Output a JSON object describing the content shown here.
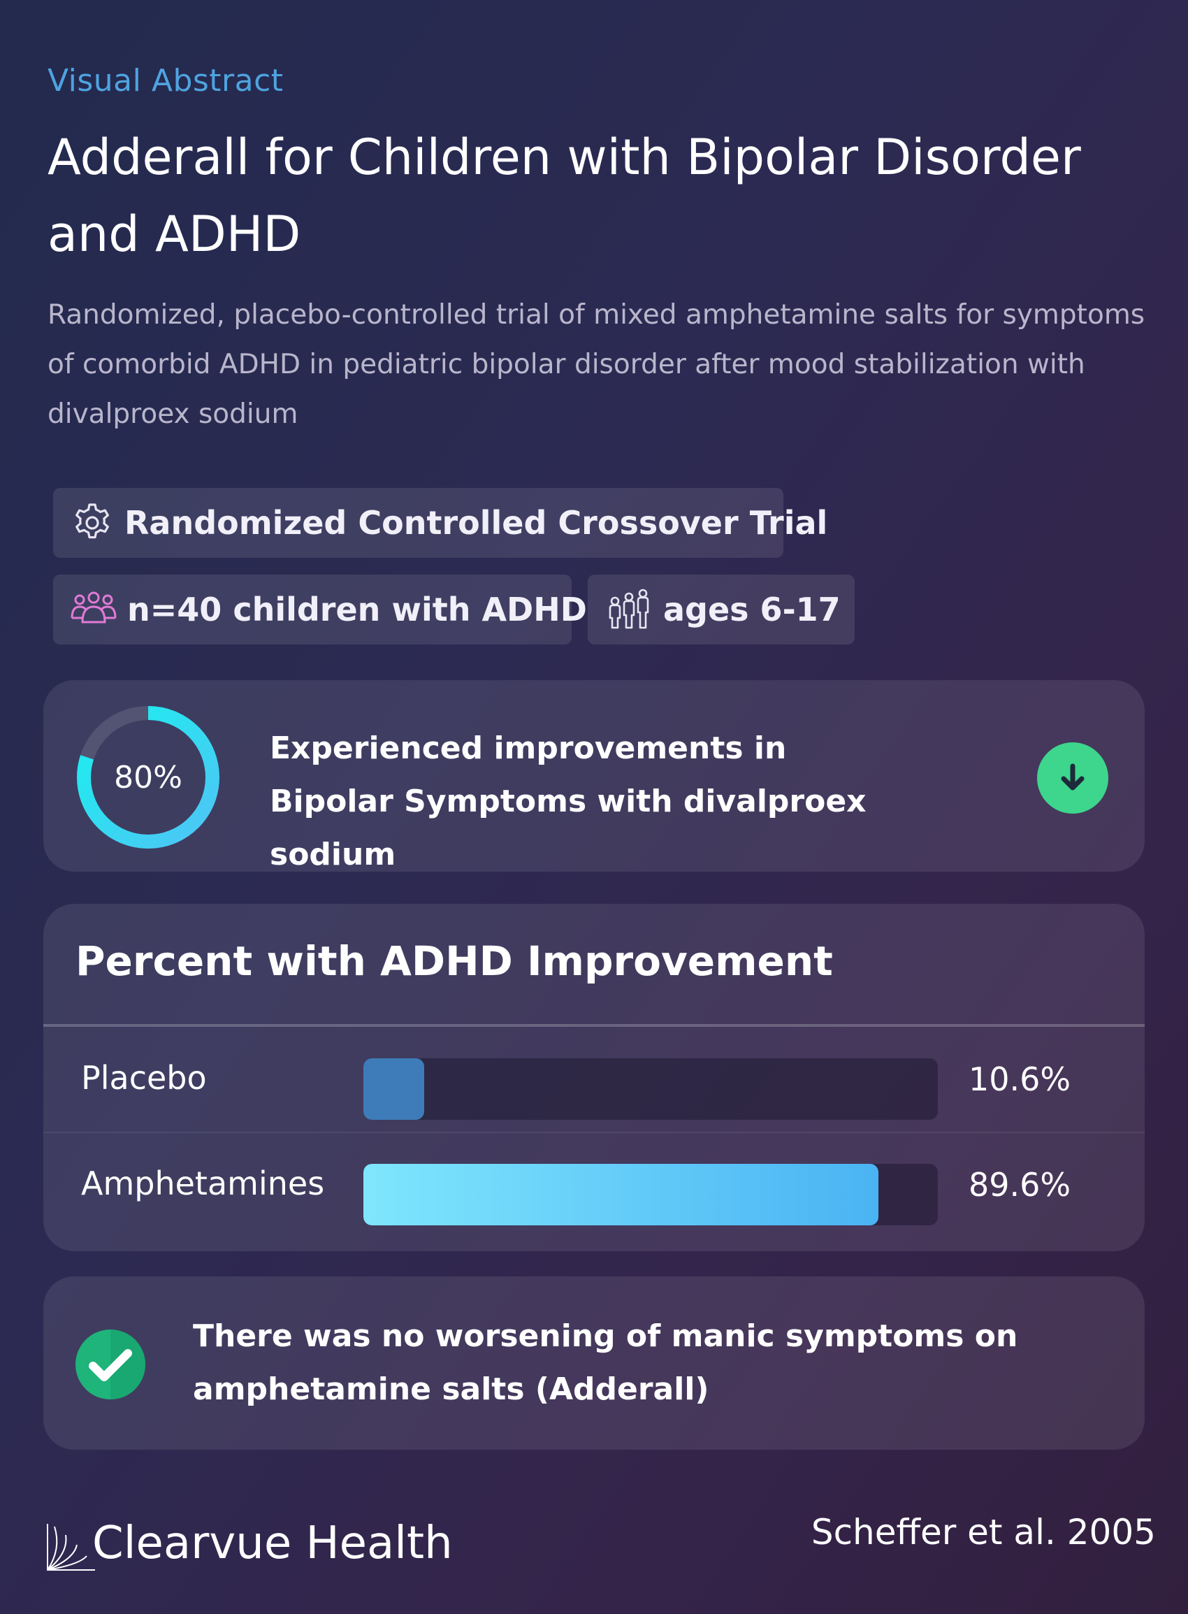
{
  "header": {
    "eyebrow": "Visual Abstract",
    "title": "Adderall for Children with Bipolar Disorder and ADHD",
    "subtitle": "Randomized, placebo-controlled trial of mixed amphetamine salts for symptoms of comorbid ADHD in pediatric bipolar disorder after mood stabilization with divalproex sodium"
  },
  "tags": {
    "design": {
      "label": "Randomized Controlled Crossover Trial",
      "icon": "gear-icon"
    },
    "sample": {
      "label": "n=40 children with ADHD",
      "icon": "people-group-icon"
    },
    "ages": {
      "label": "ages 6-17",
      "icon": "family-icon"
    }
  },
  "stat_card": {
    "percent_label": "80%",
    "percent_value": 80,
    "text": "Experienced improvements in Bipolar Symptoms with divalproex sodium",
    "icon": "arrow-down-icon",
    "ring_color": "#26e6f2",
    "button_color": "#3dd68c"
  },
  "chart_card": {
    "title": "Percent with ADHD Improvement"
  },
  "chart_data": {
    "type": "bar",
    "title": "Percent with ADHD Improvement",
    "categories": [
      "Placebo",
      "Amphetamines"
    ],
    "values": [
      10.6,
      89.6
    ],
    "value_labels": [
      "10.6%",
      "89.6%"
    ],
    "ylim": [
      0,
      100
    ],
    "orientation": "horizontal",
    "colors": [
      "#3d7cb8",
      "#4ab3f3"
    ]
  },
  "note_card": {
    "text": "There was no worsening of manic symptoms on amphetamine salts (Adderall)",
    "icon": "check-circle-icon",
    "icon_color": "#1fb47a"
  },
  "footer": {
    "brand": "Clearvue Health",
    "citation": "Scheffer et al. 2005"
  },
  "colors": {
    "accent": "#4fa3e0",
    "background_start": "#232a4e",
    "background_end": "#321f3e"
  }
}
